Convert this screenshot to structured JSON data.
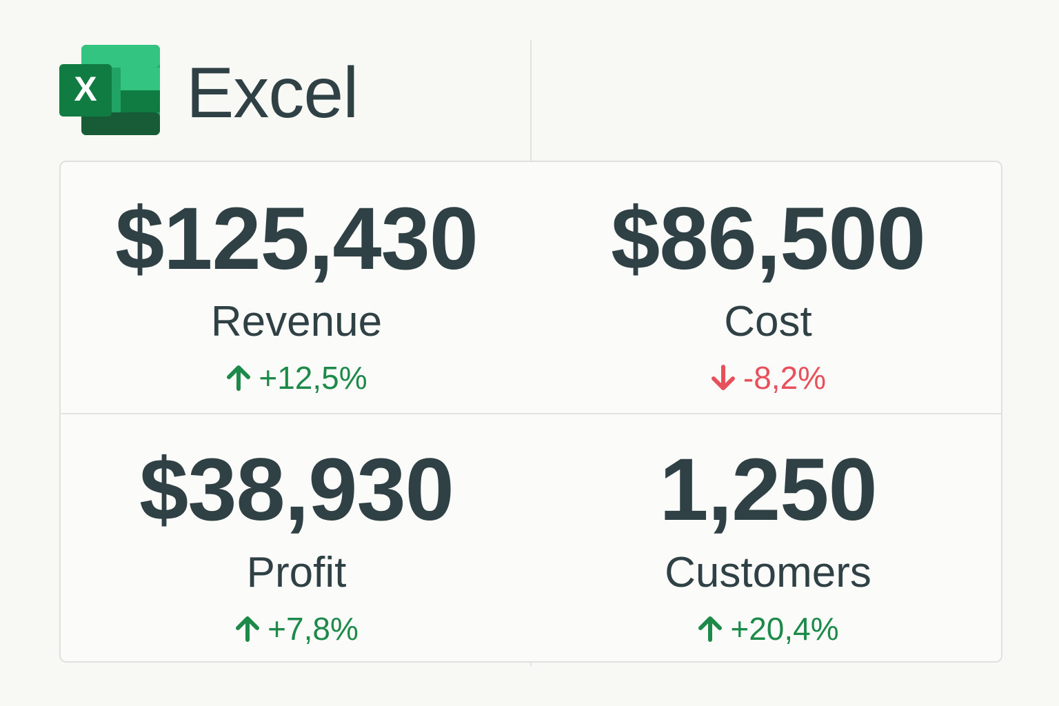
{
  "header": {
    "logo_letter": "X",
    "title": "Excel"
  },
  "cards": [
    {
      "value": "$125,430",
      "label": "Revenue",
      "change": "+12,5%"
    },
    {
      "value": "$86,500",
      "label": "Cost",
      "change": "-8,2%"
    },
    {
      "value": "$38,930",
      "label": "Profit",
      "change": "+7,8%"
    },
    {
      "value": "1,250",
      "label": "Customers",
      "change": "+20,4%"
    }
  ]
}
